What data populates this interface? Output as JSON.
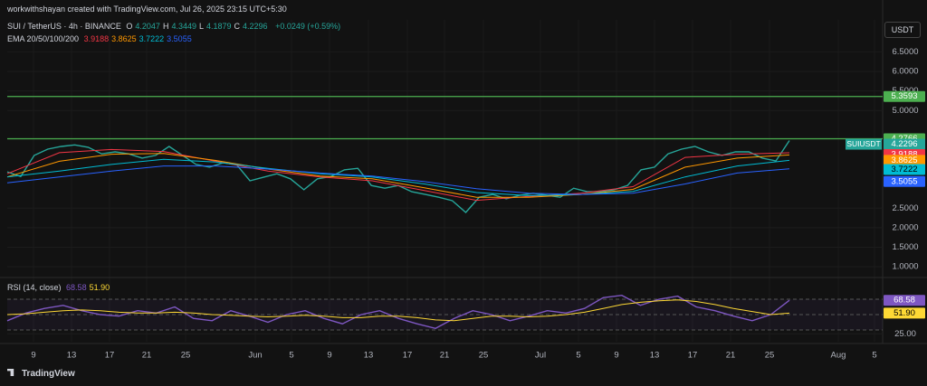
{
  "header": {
    "watermark": "workwithshayan created with TradingView.com, Jul 26, 2025 23:15 UTC+5:30",
    "symbol": "SUI / TetherUS · 4h · BINANCE",
    "ohlc": [
      {
        "key": "O",
        "value": "4.2047"
      },
      {
        "key": "H",
        "value": "4.3449"
      },
      {
        "key": "L",
        "value": "4.1879"
      },
      {
        "key": "C",
        "value": "4.2296"
      }
    ],
    "change": "+0.0249 (+0.59%)",
    "ema_label": "EMA 20/50/100/200",
    "ema_values": [
      "3.9188",
      "3.8625",
      "3.7222",
      "3.5055"
    ],
    "rsi_label": "RSI (14, close)",
    "rsi_values": [
      "68.58",
      "51.90"
    ],
    "currency": "USDT",
    "ticker_tag": "SUIUSDT",
    "footer": "TradingView"
  },
  "chart_data": [
    {
      "type": "line",
      "ylim": [
        0.77,
        7.32
      ],
      "yticks": [
        {
          "value": 1,
          "label": "1.0000"
        },
        {
          "value": 1.5,
          "label": "1.5000"
        },
        {
          "value": 2,
          "label": "2.0000"
        },
        {
          "value": 2.5,
          "label": "2.5000"
        },
        {
          "value": 5,
          "label": "5.0000"
        },
        {
          "value": 5.5,
          "label": "5.5000"
        },
        {
          "value": 6,
          "label": "6.0000"
        },
        {
          "value": 6.5,
          "label": "6.5000"
        }
      ],
      "hlines": [
        {
          "value": 5.3593,
          "color": "#4caf50"
        },
        {
          "value": 4.2766,
          "color": "#4caf50"
        }
      ],
      "series": [
        {
          "color": "#26a69a",
          "values": [
            3.43,
            3.31,
            3.85,
            4.01,
            4.08,
            4.12,
            4.06,
            3.89,
            3.94,
            3.89,
            3.78,
            3.85,
            4.08,
            3.85,
            3.62,
            3.55,
            3.66,
            3.62,
            3.2,
            3.29,
            3.38,
            3.25,
            2.97,
            3.25,
            3.31,
            3.48,
            3.52,
            3.08,
            3.01,
            3.08,
            2.92,
            2.85,
            2.78,
            2.69,
            2.39,
            2.78,
            2.85,
            2.74,
            2.83,
            2.88,
            2.83,
            2.78,
            3.01,
            2.92,
            2.92,
            2.97,
            3.08,
            3.48,
            3.55,
            3.89,
            4.01,
            4.08,
            3.94,
            3.85,
            3.94,
            3.94,
            3.78,
            3.71,
            4.2296
          ]
        },
        {
          "color": "#f23645",
          "values": [
            3.38,
            3.92,
            4.0,
            3.95,
            3.7,
            3.45,
            3.3,
            3.2,
            2.95,
            2.7,
            2.8,
            2.88,
            3.05,
            3.8,
            3.88,
            3.9188
          ]
        },
        {
          "color": "#ff9800",
          "values": [
            3.3,
            3.7,
            3.88,
            3.9,
            3.72,
            3.5,
            3.32,
            3.25,
            3.02,
            2.78,
            2.78,
            2.85,
            2.98,
            3.55,
            3.78,
            3.8625
          ]
        },
        {
          "color": "#00bcd4",
          "values": [
            3.3,
            3.45,
            3.62,
            3.75,
            3.68,
            3.52,
            3.38,
            3.3,
            3.12,
            2.9,
            2.82,
            2.85,
            2.93,
            3.3,
            3.58,
            3.7222
          ]
        },
        {
          "color": "#2962ff",
          "values": [
            3.15,
            3.3,
            3.45,
            3.58,
            3.58,
            3.5,
            3.4,
            3.32,
            3.18,
            3.0,
            2.88,
            2.85,
            2.88,
            3.12,
            3.4,
            3.5055
          ]
        }
      ]
    },
    {
      "type": "line",
      "ylim": [
        14.7,
        94.7
      ],
      "yticks": [
        {
          "value": 25,
          "label": "25.00"
        }
      ],
      "levels": [
        70,
        50,
        30
      ],
      "series": [
        {
          "color": "#7e57c2",
          "values": [
            42,
            52,
            58,
            62,
            55,
            50,
            48,
            55,
            52,
            60,
            45,
            42,
            55,
            48,
            40,
            50,
            55,
            45,
            38,
            50,
            55,
            45,
            38,
            32,
            45,
            55,
            50,
            42,
            48,
            55,
            52,
            58,
            72,
            75,
            62,
            70,
            74,
            60,
            55,
            48,
            42,
            50,
            68.58
          ]
        },
        {
          "color": "#fdd835",
          "values": [
            50,
            51,
            53,
            55,
            56,
            55,
            53,
            52,
            52,
            53,
            52,
            50,
            49,
            48,
            47,
            48,
            49,
            48,
            46,
            46,
            48,
            48,
            46,
            43,
            42,
            45,
            48,
            48,
            47,
            48,
            50,
            53,
            58,
            63,
            66,
            68,
            69,
            67,
            63,
            58,
            54,
            50,
            51.9
          ]
        }
      ]
    }
  ],
  "xlabels": [
    "9",
    "13",
    "17",
    "21",
    "25",
    "Jun",
    "5",
    "9",
    "13",
    "17",
    "21",
    "25",
    "Jul",
    "5",
    "9",
    "13",
    "17",
    "21",
    "25",
    "Aug",
    "5"
  ]
}
